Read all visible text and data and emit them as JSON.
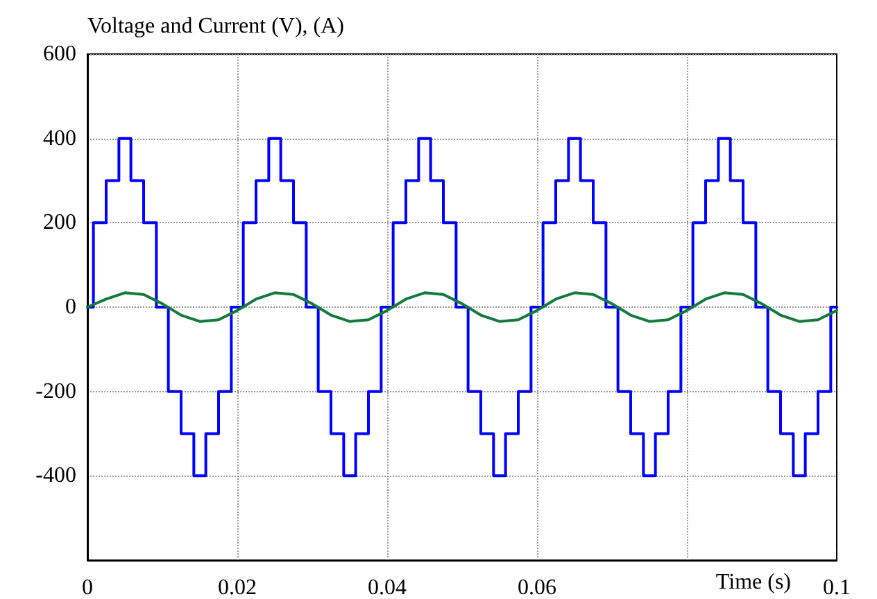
{
  "chart_data": {
    "type": "line",
    "ylabel": "Voltage and Current (V), (A)",
    "xlabel": "Time (s)",
    "xlim": [
      0,
      0.1
    ],
    "xticks": [
      0,
      0.02,
      0.04,
      0.06,
      {
        "value": 0.08,
        "label": null
      },
      0.1
    ],
    "ylim": [
      -600,
      600
    ],
    "yticks": [
      {
        "value": -600,
        "label": null
      },
      -400,
      -200,
      0,
      200,
      400,
      600
    ],
    "grid": true,
    "series": [
      {
        "type": "step",
        "color": "#0000ff",
        "x": [
          0,
          0.0008,
          0.0025,
          0.0042,
          0.0058,
          0.0075,
          0.0092,
          0.0108,
          0.0125,
          0.0142,
          0.0158,
          0.0175,
          0.0192,
          0.0208,
          0.0225,
          0.0242,
          0.0258,
          0.0275,
          0.0292,
          0.0308,
          0.0325,
          0.0342,
          0.0358,
          0.0375,
          0.0392,
          0.0408,
          0.0425,
          0.0442,
          0.0458,
          0.0475,
          0.0492,
          0.0508,
          0.0525,
          0.0542,
          0.0558,
          0.0575,
          0.0592,
          0.0608,
          0.0625,
          0.0642,
          0.0658,
          0.0675,
          0.0692,
          0.0708,
          0.0725,
          0.0742,
          0.0758,
          0.0775,
          0.0792,
          0.0808,
          0.0825,
          0.0842,
          0.0858,
          0.0875,
          0.0892,
          0.0908,
          0.0925,
          0.0942,
          0.0958,
          0.0975,
          0.0992,
          0.1
        ],
        "values": [
          0,
          200,
          300,
          400,
          300,
          200,
          0,
          -200,
          -300,
          -400,
          -300,
          -200,
          0,
          200,
          300,
          400,
          300,
          200,
          0,
          -200,
          -300,
          -400,
          -300,
          -200,
          0,
          200,
          300,
          400,
          300,
          200,
          0,
          -200,
          -300,
          -400,
          -300,
          -200,
          0,
          200,
          300,
          400,
          300,
          200,
          0,
          -200,
          -300,
          -400,
          -300,
          -200,
          0,
          200,
          300,
          400,
          300,
          200,
          0,
          -200,
          -300,
          -400,
          -300,
          -200,
          0,
          0
        ]
      },
      {
        "type": "line",
        "color": "#147a3c",
        "x": [
          0,
          0.0025,
          0.005,
          0.0075,
          0.01,
          0.0125,
          0.015,
          0.0175,
          0.02,
          0.0225,
          0.025,
          0.0275,
          0.03,
          0.0325,
          0.035,
          0.0375,
          0.04,
          0.0425,
          0.045,
          0.0475,
          0.05,
          0.0525,
          0.055,
          0.0575,
          0.06,
          0.0625,
          0.065,
          0.0675,
          0.07,
          0.0725,
          0.075,
          0.0775,
          0.08,
          0.0825,
          0.085,
          0.0875,
          0.09,
          0.0925,
          0.095,
          0.0975,
          0.1
        ],
        "values": [
          0,
          19,
          34,
          30,
          8,
          -19,
          -34,
          -30,
          -8,
          19,
          34,
          30,
          8,
          -19,
          -34,
          -30,
          -8,
          19,
          34,
          30,
          8,
          -19,
          -34,
          -30,
          -8,
          19,
          34,
          30,
          8,
          -19,
          -34,
          -30,
          -8,
          19,
          34,
          30,
          8,
          -19,
          -34,
          -30,
          -8
        ]
      }
    ]
  }
}
